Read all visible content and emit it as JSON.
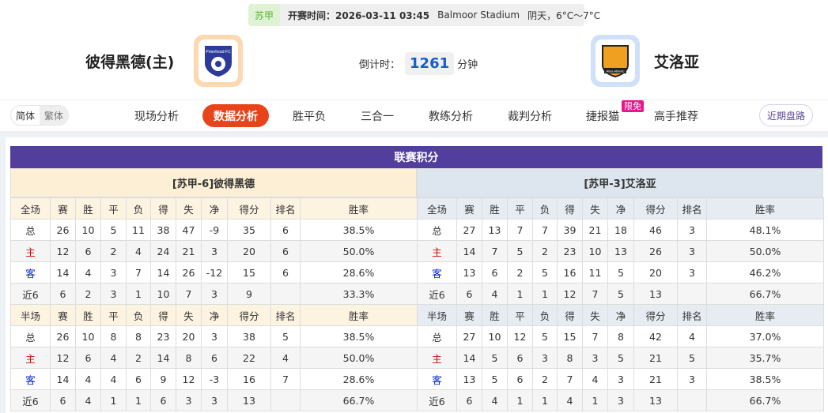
{
  "header": {
    "league": "苏甲",
    "kickoff_label": "开赛时间：2026-03-11 03:45",
    "venue": "Balmoor Stadium",
    "weather": "阴天，6°C～7°C",
    "home_team": "彼得黑德(主)",
    "away_team": "艾洛亚",
    "countdown_label": "倒计时：",
    "countdown_value": "1261",
    "countdown_unit": "分钟",
    "home_logo_text": "Peterhead FC",
    "away_logo_text": "Alloa Athletic"
  },
  "nav": {
    "lang": [
      "简体",
      "繁体"
    ],
    "tabs": [
      "现场分析",
      "数据分析",
      "胜平负",
      "三合一",
      "教练分析",
      "裁判分析",
      "捷报猫",
      "高手推荐"
    ],
    "active_tab": "数据分析",
    "badge": "限免",
    "recent": "近期盘路"
  },
  "standings": {
    "title": "联赛积分",
    "columns_full": [
      "全场",
      "赛",
      "胜",
      "平",
      "负",
      "得",
      "失",
      "净",
      "得分",
      "排名",
      "胜率"
    ],
    "columns_half": [
      "半场",
      "赛",
      "胜",
      "平",
      "负",
      "得",
      "失",
      "净",
      "得分",
      "排名",
      "胜率"
    ],
    "home": {
      "name": "[苏甲-6]彼得黑德",
      "full": [
        [
          "总",
          "26",
          "10",
          "5",
          "11",
          "38",
          "47",
          "-9",
          "35",
          "6",
          "38.5%"
        ],
        [
          "主",
          "12",
          "6",
          "2",
          "4",
          "24",
          "21",
          "3",
          "20",
          "6",
          "50.0%"
        ],
        [
          "客",
          "14",
          "4",
          "3",
          "7",
          "14",
          "26",
          "-12",
          "15",
          "6",
          "28.6%"
        ],
        [
          "近6",
          "6",
          "2",
          "3",
          "1",
          "10",
          "7",
          "3",
          "9",
          "",
          "33.3%"
        ]
      ],
      "half": [
        [
          "总",
          "26",
          "10",
          "8",
          "8",
          "23",
          "20",
          "3",
          "38",
          "5",
          "38.5%"
        ],
        [
          "主",
          "12",
          "6",
          "4",
          "2",
          "14",
          "8",
          "6",
          "22",
          "4",
          "50.0%"
        ],
        [
          "客",
          "14",
          "4",
          "4",
          "6",
          "9",
          "12",
          "-3",
          "16",
          "7",
          "28.6%"
        ],
        [
          "近6",
          "6",
          "4",
          "1",
          "1",
          "6",
          "3",
          "3",
          "13",
          "",
          "66.7%"
        ]
      ]
    },
    "away": {
      "name": "[苏甲-3]艾洛亚",
      "full": [
        [
          "总",
          "27",
          "13",
          "7",
          "7",
          "39",
          "21",
          "18",
          "46",
          "3",
          "48.1%"
        ],
        [
          "主",
          "14",
          "7",
          "5",
          "2",
          "23",
          "10",
          "13",
          "26",
          "3",
          "50.0%"
        ],
        [
          "客",
          "13",
          "6",
          "2",
          "5",
          "16",
          "11",
          "5",
          "20",
          "3",
          "46.2%"
        ],
        [
          "近6",
          "6",
          "4",
          "1",
          "1",
          "12",
          "7",
          "5",
          "13",
          "",
          "66.7%"
        ]
      ],
      "half": [
        [
          "总",
          "27",
          "10",
          "12",
          "5",
          "15",
          "7",
          "8",
          "42",
          "4",
          "37.0%"
        ],
        [
          "主",
          "14",
          "5",
          "6",
          "3",
          "8",
          "3",
          "5",
          "21",
          "5",
          "35.7%"
        ],
        [
          "客",
          "13",
          "5",
          "6",
          "2",
          "7",
          "4",
          "3",
          "21",
          "3",
          "38.5%"
        ],
        [
          "近6",
          "6",
          "4",
          "1",
          "1",
          "4",
          "1",
          "3",
          "13",
          "",
          "66.7%"
        ]
      ]
    }
  },
  "colors": {
    "accent": "#e8441b",
    "title_bg": "#523f9d",
    "home_color": "#dd0000",
    "away_color": "#0022cc"
  }
}
